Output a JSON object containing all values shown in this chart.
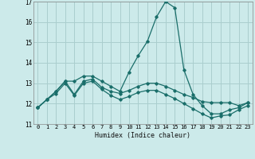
{
  "xlabel": "Humidex (Indice chaleur)",
  "background_color": "#cceaea",
  "grid_color": "#aacece",
  "line_color": "#1a6e6a",
  "xlim": [
    -0.5,
    23.5
  ],
  "ylim": [
    11,
    17
  ],
  "yticks": [
    11,
    12,
    13,
    14,
    15,
    16,
    17
  ],
  "xticks": [
    0,
    1,
    2,
    3,
    4,
    5,
    6,
    7,
    8,
    9,
    10,
    11,
    12,
    13,
    14,
    15,
    16,
    17,
    18,
    19,
    20,
    21,
    22,
    23
  ],
  "series": [
    {
      "x": [
        0,
        1,
        2,
        3,
        4,
        5,
        6,
        7,
        8,
        9,
        10,
        11,
        12,
        13,
        14,
        15,
        16,
        17,
        18,
        19,
        20,
        21,
        22,
        23
      ],
      "y": [
        11.8,
        12.2,
        12.6,
        13.1,
        13.1,
        13.35,
        13.35,
        13.1,
        12.85,
        12.6,
        13.55,
        14.35,
        15.05,
        16.25,
        17.0,
        16.7,
        13.65,
        12.45,
        11.9,
        11.5,
        11.5,
        11.7,
        11.8,
        12.05
      ]
    },
    {
      "x": [
        0,
        1,
        2,
        3,
        4,
        5,
        6,
        7,
        8,
        9,
        10,
        11,
        12,
        13,
        14,
        15,
        16,
        17,
        18,
        19,
        20,
        21,
        22,
        23
      ],
      "y": [
        11.8,
        12.2,
        12.6,
        13.1,
        12.45,
        13.1,
        13.2,
        12.8,
        12.6,
        12.5,
        12.65,
        12.85,
        13.0,
        13.0,
        12.85,
        12.65,
        12.45,
        12.3,
        12.1,
        12.05,
        12.05,
        12.05,
        11.9,
        12.05
      ]
    },
    {
      "x": [
        0,
        1,
        2,
        3,
        4,
        5,
        6,
        7,
        8,
        9,
        10,
        11,
        12,
        13,
        14,
        15,
        16,
        17,
        18,
        19,
        20,
        21,
        22,
        23
      ],
      "y": [
        11.8,
        12.2,
        12.5,
        13.0,
        12.4,
        13.0,
        13.1,
        12.7,
        12.4,
        12.2,
        12.35,
        12.55,
        12.65,
        12.65,
        12.45,
        12.25,
        12.0,
        11.75,
        11.5,
        11.3,
        11.4,
        11.45,
        11.7,
        11.9
      ]
    }
  ]
}
